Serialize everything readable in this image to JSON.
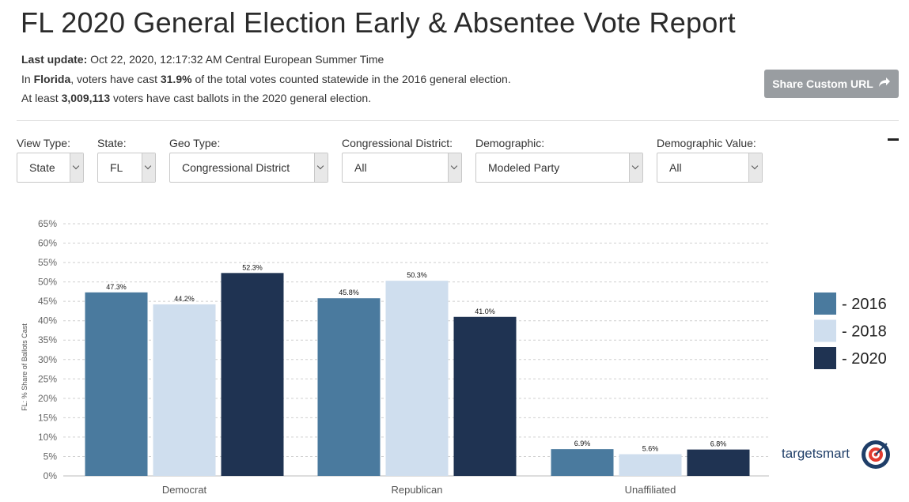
{
  "header": {
    "title": "FL 2020 General Election Early & Absentee Vote Report",
    "last_update_label": "Last update:",
    "last_update_value": "Oct 22, 2020, 12:17:32 AM Central European Summer Time",
    "line2_prefix": "In ",
    "line2_state": "Florida",
    "line2_mid": ", voters have cast ",
    "line2_pct": "31.9%",
    "line2_suffix": " of the total votes counted statewide in the 2016 general election.",
    "line3_prefix": "At least ",
    "line3_count": "3,009,113",
    "line3_suffix": " voters have cast ballots in the 2020 general election."
  },
  "share_button": {
    "label": "Share Custom URL",
    "icon": "share-arrow-icon"
  },
  "filters": [
    {
      "label": "View Type:",
      "value": "State"
    },
    {
      "label": "State:",
      "value": "FL"
    },
    {
      "label": "Geo Type:",
      "value": "Congressional District"
    },
    {
      "label": "Congressional District:",
      "value": "All"
    },
    {
      "label": "Demographic:",
      "value": "Modeled Party"
    },
    {
      "label": "Demographic Value:",
      "value": "All"
    }
  ],
  "brand": {
    "name": "targetsmart",
    "logo_icon": "target-logo-icon"
  },
  "chart_data": {
    "type": "bar",
    "title": "",
    "xlabel": "",
    "ylabel": "FL: % Share of Ballots Cast",
    "ylim": [
      0,
      65
    ],
    "yticks": [
      0,
      5,
      10,
      15,
      20,
      25,
      30,
      35,
      40,
      45,
      50,
      55,
      60,
      65
    ],
    "tick_suffix": "%",
    "grid": true,
    "legend_position": "right",
    "categories": [
      "Democrat",
      "Republican",
      "Unaffiliated"
    ],
    "series": [
      {
        "name": "- 2016",
        "color": "#4a7a9e",
        "values": [
          47.3,
          45.8,
          6.9
        ],
        "labels": [
          "47.3%",
          "45.8%",
          "6.9%"
        ]
      },
      {
        "name": "- 2018",
        "color": "#cfdeee",
        "values": [
          44.2,
          50.3,
          5.6
        ],
        "labels": [
          "44.2%",
          "50.3%",
          "5.6%"
        ]
      },
      {
        "name": "- 2020",
        "color": "#1f3352",
        "values": [
          52.3,
          41.0,
          6.8
        ],
        "labels": [
          "52.3%",
          "41.0%",
          "6.8%"
        ]
      }
    ]
  }
}
